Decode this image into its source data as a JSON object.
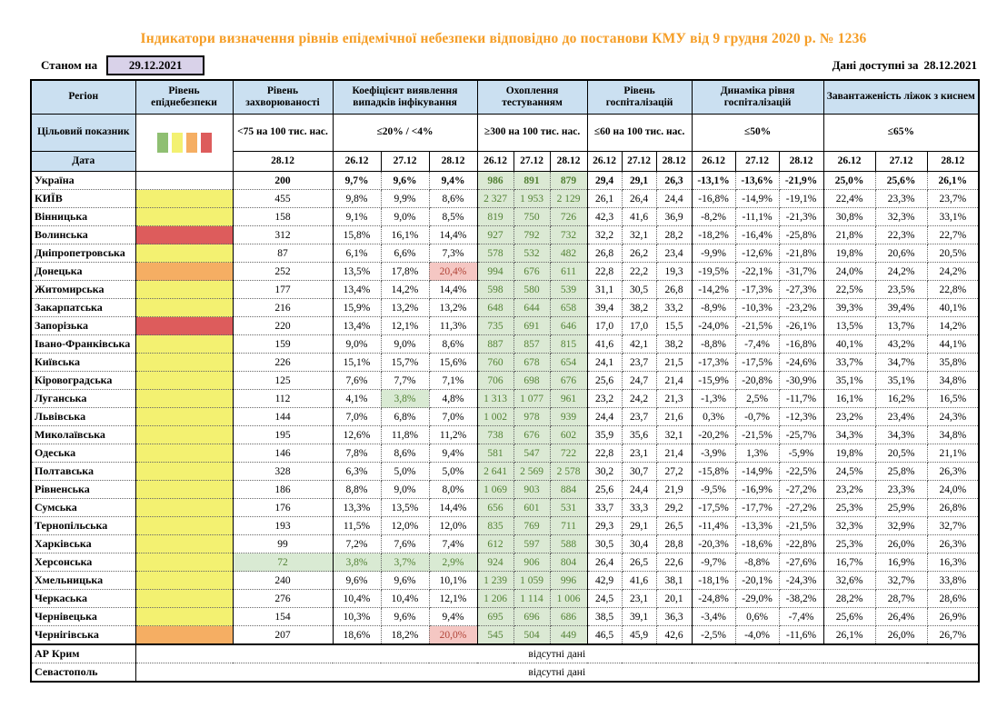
{
  "title": "Індикатори визначення рівнів епідемічної небезпеки відповідно до постанови КМУ від 9 грудня 2020 р. № 1236",
  "meta": {
    "as_of_label": "Станом на",
    "as_of_date": "29.12.2021",
    "available_label": "Дані доступні за",
    "available_date": "28.12.2021"
  },
  "colors": {
    "title_accent": "#F59D25",
    "header_blue": "#CBE0F1",
    "asof_lavender": "#D9D2E9",
    "level_yellow": "#F3F171",
    "level_orange": "#F5AE63",
    "level_red": "#DD5C5C",
    "good_bg": "#D9EAD3",
    "good_text": "#538135",
    "bad_bg": "#F5C7C3",
    "bad_text": "#B04438"
  },
  "legend_colors": [
    "#8FBF72",
    "#F3F171",
    "#F5AE63",
    "#DD5C5C"
  ],
  "header": {
    "region": "Регіон",
    "target_label": "Цільовий показник",
    "date_label": "Дата",
    "groups": [
      {
        "label": "Рівень епіднебезпеки",
        "target": "",
        "dates": []
      },
      {
        "label": "Рівень захворюваності",
        "target": "<75 на 100 тис. нас.",
        "dates": [
          "28.12"
        ]
      },
      {
        "label": "Коефіцієнт виявлення випадків інфікування",
        "target": "≤20% / <4%",
        "dates": [
          "26.12",
          "27.12",
          "28.12"
        ]
      },
      {
        "label": "Охоплення тестуванням",
        "target": "≥300 на 100 тис. нас.",
        "dates": [
          "26.12",
          "27.12",
          "28.12"
        ]
      },
      {
        "label": "Рівень госпіталізацій",
        "target": "≤60 на 100 тис. нас.",
        "dates": [
          "26.12",
          "27.12",
          "28.12"
        ]
      },
      {
        "label": "Динаміка рівня госпіталізацій",
        "target": "≤50%",
        "dates": [
          "26.12",
          "27.12",
          "28.12"
        ]
      },
      {
        "label": "Завантаженість ліжок з киснем",
        "target": "≤65%",
        "dates": [
          "26.12",
          "27.12",
          "28.12"
        ]
      }
    ]
  },
  "rows": [
    {
      "name": "Україна",
      "bold": true,
      "level": "none",
      "inc": "200",
      "coef": [
        "9,7%",
        "9,6%",
        "9,4%"
      ],
      "test": [
        "986",
        "891",
        "879"
      ],
      "hosp": [
        "29,4",
        "29,1",
        "26,3"
      ],
      "dyn": [
        "-13,1%",
        "-13,6%",
        "-21,9%"
      ],
      "beds": [
        "25,0%",
        "25,6%",
        "26,1%"
      ]
    },
    {
      "name": "КИЇВ",
      "level": "yellow",
      "inc": "455",
      "coef": [
        "9,8%",
        "9,9%",
        "8,6%"
      ],
      "test": [
        "2 327",
        "1 953",
        "2 129"
      ],
      "hosp": [
        "26,1",
        "26,4",
        "24,4"
      ],
      "dyn": [
        "-16,8%",
        "-14,9%",
        "-19,1%"
      ],
      "beds": [
        "22,4%",
        "23,3%",
        "23,7%"
      ]
    },
    {
      "name": "Вінницька",
      "level": "yellow",
      "inc": "158",
      "coef": [
        "9,1%",
        "9,0%",
        "8,5%"
      ],
      "test": [
        "819",
        "750",
        "726"
      ],
      "hosp": [
        "42,3",
        "41,6",
        "36,9"
      ],
      "dyn": [
        "-8,2%",
        "-11,1%",
        "-21,3%"
      ],
      "beds": [
        "30,8%",
        "32,3%",
        "33,1%"
      ]
    },
    {
      "name": "Волинська",
      "level": "red",
      "inc": "312",
      "coef": [
        "15,8%",
        "16,1%",
        "14,4%"
      ],
      "test": [
        "927",
        "792",
        "732"
      ],
      "hosp": [
        "32,2",
        "32,1",
        "28,2"
      ],
      "dyn": [
        "-18,2%",
        "-16,4%",
        "-25,8%"
      ],
      "beds": [
        "21,8%",
        "22,3%",
        "22,7%"
      ]
    },
    {
      "name": "Дніпропетровська",
      "level": "yellow",
      "inc": "87",
      "coef": [
        "6,1%",
        "6,6%",
        "7,3%"
      ],
      "test": [
        "578",
        "532",
        "482"
      ],
      "hosp": [
        "26,8",
        "26,2",
        "23,4"
      ],
      "dyn": [
        "-9,9%",
        "-12,6%",
        "-21,8%"
      ],
      "beds": [
        "19,8%",
        "20,6%",
        "20,5%"
      ]
    },
    {
      "name": "Донецька",
      "level": "orange",
      "inc": "252",
      "coef": [
        "13,5%",
        "17,8%",
        "20,4%"
      ],
      "coef_hl": [
        null,
        null,
        "bad"
      ],
      "test": [
        "994",
        "676",
        "611"
      ],
      "hosp": [
        "22,8",
        "22,2",
        "19,3"
      ],
      "dyn": [
        "-19,5%",
        "-22,1%",
        "-31,7%"
      ],
      "beds": [
        "24,0%",
        "24,2%",
        "24,2%"
      ]
    },
    {
      "name": "Житомирська",
      "level": "yellow",
      "inc": "177",
      "coef": [
        "13,4%",
        "14,2%",
        "14,4%"
      ],
      "test": [
        "598",
        "580",
        "539"
      ],
      "hosp": [
        "31,1",
        "30,5",
        "26,8"
      ],
      "dyn": [
        "-14,2%",
        "-17,3%",
        "-27,3%"
      ],
      "beds": [
        "22,5%",
        "23,5%",
        "22,8%"
      ]
    },
    {
      "name": "Закарпатська",
      "level": "yellow",
      "inc": "216",
      "coef": [
        "15,9%",
        "13,2%",
        "13,2%"
      ],
      "test": [
        "648",
        "644",
        "658"
      ],
      "hosp": [
        "39,4",
        "38,2",
        "33,2"
      ],
      "dyn": [
        "-8,9%",
        "-10,3%",
        "-23,2%"
      ],
      "beds": [
        "39,3%",
        "39,4%",
        "40,1%"
      ]
    },
    {
      "name": "Запорізька",
      "level": "red",
      "inc": "220",
      "coef": [
        "13,4%",
        "12,1%",
        "11,3%"
      ],
      "test": [
        "735",
        "691",
        "646"
      ],
      "hosp": [
        "17,0",
        "17,0",
        "15,5"
      ],
      "dyn": [
        "-24,0%",
        "-21,5%",
        "-26,1%"
      ],
      "beds": [
        "13,5%",
        "13,7%",
        "14,2%"
      ]
    },
    {
      "name": "Івано-Франківська",
      "level": "yellow",
      "inc": "159",
      "coef": [
        "9,0%",
        "9,0%",
        "8,6%"
      ],
      "test": [
        "887",
        "857",
        "815"
      ],
      "hosp": [
        "41,6",
        "42,1",
        "38,2"
      ],
      "dyn": [
        "-8,8%",
        "-7,4%",
        "-16,8%"
      ],
      "beds": [
        "40,1%",
        "43,2%",
        "44,1%"
      ]
    },
    {
      "name": "Київська",
      "level": "yellow",
      "inc": "226",
      "coef": [
        "15,1%",
        "15,7%",
        "15,6%"
      ],
      "test": [
        "760",
        "678",
        "654"
      ],
      "hosp": [
        "24,1",
        "23,7",
        "21,5"
      ],
      "dyn": [
        "-17,3%",
        "-17,5%",
        "-24,6%"
      ],
      "beds": [
        "33,7%",
        "34,7%",
        "35,8%"
      ]
    },
    {
      "name": "Кіровоградська",
      "level": "yellow",
      "inc": "125",
      "coef": [
        "7,6%",
        "7,7%",
        "7,1%"
      ],
      "test": [
        "706",
        "698",
        "676"
      ],
      "hosp": [
        "25,6",
        "24,7",
        "21,4"
      ],
      "dyn": [
        "-15,9%",
        "-20,8%",
        "-30,9%"
      ],
      "beds": [
        "35,1%",
        "35,1%",
        "34,8%"
      ]
    },
    {
      "name": "Луганська",
      "level": "yellow",
      "inc": "112",
      "coef": [
        "4,1%",
        "3,8%",
        "4,8%"
      ],
      "coef_hl": [
        null,
        "good",
        null
      ],
      "test": [
        "1 313",
        "1 077",
        "961"
      ],
      "hosp": [
        "23,2",
        "24,2",
        "21,3"
      ],
      "dyn": [
        "-1,3%",
        "2,5%",
        "-11,7%"
      ],
      "beds": [
        "16,1%",
        "16,2%",
        "16,5%"
      ]
    },
    {
      "name": "Львівська",
      "level": "yellow",
      "inc": "144",
      "coef": [
        "7,0%",
        "6,8%",
        "7,0%"
      ],
      "test": [
        "1 002",
        "978",
        "939"
      ],
      "hosp": [
        "24,4",
        "23,7",
        "21,6"
      ],
      "dyn": [
        "0,3%",
        "-0,7%",
        "-12,3%"
      ],
      "beds": [
        "23,2%",
        "23,4%",
        "24,3%"
      ]
    },
    {
      "name": "Миколаївська",
      "level": "yellow",
      "inc": "195",
      "coef": [
        "12,6%",
        "11,8%",
        "11,2%"
      ],
      "test": [
        "738",
        "676",
        "602"
      ],
      "hosp": [
        "35,9",
        "35,6",
        "32,1"
      ],
      "dyn": [
        "-20,2%",
        "-21,5%",
        "-25,7%"
      ],
      "beds": [
        "34,3%",
        "34,3%",
        "34,8%"
      ]
    },
    {
      "name": "Одеська",
      "level": "yellow",
      "inc": "146",
      "coef": [
        "7,8%",
        "8,6%",
        "9,4%"
      ],
      "test": [
        "581",
        "547",
        "722"
      ],
      "hosp": [
        "22,8",
        "23,1",
        "21,4"
      ],
      "dyn": [
        "-3,9%",
        "1,3%",
        "-5,9%"
      ],
      "beds": [
        "19,8%",
        "20,5%",
        "21,1%"
      ]
    },
    {
      "name": "Полтавська",
      "level": "yellow",
      "inc": "328",
      "coef": [
        "6,3%",
        "5,0%",
        "5,0%"
      ],
      "test": [
        "2 641",
        "2 569",
        "2 578"
      ],
      "hosp": [
        "30,2",
        "30,7",
        "27,2"
      ],
      "dyn": [
        "-15,8%",
        "-14,9%",
        "-22,5%"
      ],
      "beds": [
        "24,5%",
        "25,8%",
        "26,3%"
      ]
    },
    {
      "name": "Рівненська",
      "level": "yellow",
      "inc": "186",
      "coef": [
        "8,8%",
        "9,0%",
        "8,0%"
      ],
      "test": [
        "1 069",
        "903",
        "884"
      ],
      "hosp": [
        "25,6",
        "24,4",
        "21,9"
      ],
      "dyn": [
        "-9,5%",
        "-16,9%",
        "-27,2%"
      ],
      "beds": [
        "23,2%",
        "23,3%",
        "24,0%"
      ]
    },
    {
      "name": "Сумська",
      "level": "yellow",
      "inc": "176",
      "coef": [
        "13,3%",
        "13,5%",
        "14,4%"
      ],
      "test": [
        "656",
        "601",
        "531"
      ],
      "hosp": [
        "33,7",
        "33,3",
        "29,2"
      ],
      "dyn": [
        "-17,5%",
        "-17,7%",
        "-27,2%"
      ],
      "beds": [
        "25,3%",
        "25,9%",
        "26,8%"
      ]
    },
    {
      "name": "Тернопільська",
      "level": "yellow",
      "inc": "193",
      "coef": [
        "11,5%",
        "12,0%",
        "12,0%"
      ],
      "test": [
        "835",
        "769",
        "711"
      ],
      "hosp": [
        "29,3",
        "29,1",
        "26,5"
      ],
      "dyn": [
        "-11,4%",
        "-13,3%",
        "-21,5%"
      ],
      "beds": [
        "32,3%",
        "32,9%",
        "32,7%"
      ]
    },
    {
      "name": "Харківська",
      "level": "yellow",
      "inc": "99",
      "coef": [
        "7,2%",
        "7,6%",
        "7,4%"
      ],
      "test": [
        "612",
        "597",
        "588"
      ],
      "hosp": [
        "30,5",
        "30,4",
        "28,8"
      ],
      "dyn": [
        "-20,3%",
        "-18,6%",
        "-22,8%"
      ],
      "beds": [
        "25,3%",
        "26,0%",
        "26,3%"
      ]
    },
    {
      "name": "Херсонська",
      "level": "yellow",
      "inc": "72",
      "inc_hl": "good",
      "coef": [
        "3,8%",
        "3,7%",
        "2,9%"
      ],
      "coef_hl": [
        "good",
        "good",
        "good"
      ],
      "test": [
        "924",
        "906",
        "804"
      ],
      "hosp": [
        "26,4",
        "26,5",
        "22,6"
      ],
      "dyn": [
        "-9,7%",
        "-8,8%",
        "-27,6%"
      ],
      "beds": [
        "16,7%",
        "16,9%",
        "16,3%"
      ]
    },
    {
      "name": "Хмельницька",
      "level": "yellow",
      "inc": "240",
      "coef": [
        "9,6%",
        "9,6%",
        "10,1%"
      ],
      "test": [
        "1 239",
        "1 059",
        "996"
      ],
      "hosp": [
        "42,9",
        "41,6",
        "38,1"
      ],
      "dyn": [
        "-18,1%",
        "-20,1%",
        "-24,3%"
      ],
      "beds": [
        "32,6%",
        "32,7%",
        "33,8%"
      ]
    },
    {
      "name": "Черкаська",
      "level": "yellow",
      "inc": "276",
      "coef": [
        "10,4%",
        "10,4%",
        "12,1%"
      ],
      "test": [
        "1 206",
        "1 114",
        "1 006"
      ],
      "hosp": [
        "24,5",
        "23,1",
        "20,1"
      ],
      "dyn": [
        "-24,8%",
        "-29,0%",
        "-38,2%"
      ],
      "beds": [
        "28,2%",
        "28,7%",
        "28,6%"
      ]
    },
    {
      "name": "Чернівецька",
      "level": "yellow",
      "inc": "154",
      "coef": [
        "10,3%",
        "9,6%",
        "9,4%"
      ],
      "test": [
        "695",
        "696",
        "686"
      ],
      "hosp": [
        "38,5",
        "39,1",
        "36,3"
      ],
      "dyn": [
        "-3,4%",
        "0,6%",
        "-7,4%"
      ],
      "beds": [
        "25,6%",
        "26,4%",
        "26,9%"
      ]
    },
    {
      "name": "Чернігівська",
      "level": "orange",
      "inc": "207",
      "coef": [
        "18,6%",
        "18,2%",
        "20,0%"
      ],
      "coef_hl": [
        null,
        null,
        "bad"
      ],
      "test": [
        "545",
        "504",
        "449"
      ],
      "hosp": [
        "46,5",
        "45,9",
        "42,6"
      ],
      "dyn": [
        "-2,5%",
        "-4,0%",
        "-11,6%"
      ],
      "beds": [
        "26,1%",
        "26,0%",
        "26,7%"
      ]
    },
    {
      "name": "АР Крим",
      "solid_top": true,
      "nodata": "відсутні дані"
    },
    {
      "name": "Севастополь",
      "nodata": "відсутні дані"
    }
  ]
}
